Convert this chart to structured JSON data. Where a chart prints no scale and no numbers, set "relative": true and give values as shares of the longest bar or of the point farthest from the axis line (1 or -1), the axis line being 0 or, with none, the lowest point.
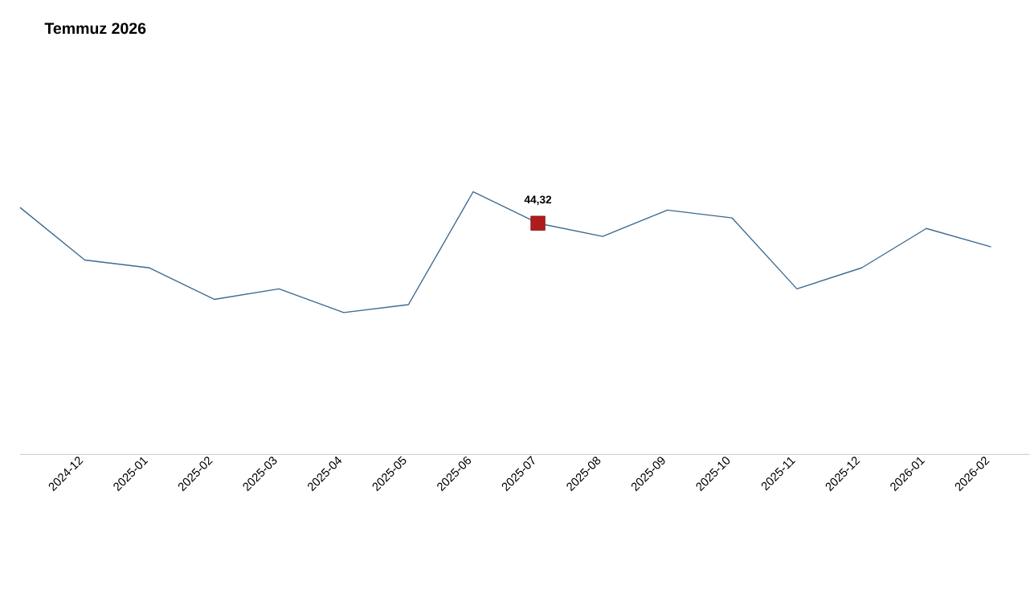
{
  "chart_data": {
    "type": "line",
    "title": "Temmuz 2026",
    "relative": true,
    "tick_labels": "x",
    "categories": [
      null,
      "2024-12",
      "2025-01",
      "2025-02",
      "2025-03",
      "2025-04",
      "2025-05",
      "2025-06",
      "2025-07",
      "2025-08",
      "2025-09",
      "2025-10",
      "2025-11",
      "2025-12",
      "2026-01",
      "2026-02"
    ],
    "series": [
      {
        "color": "#3d6a8f",
        "marker": "none",
        "values": [
          0.94,
          0.74,
          0.71,
          0.59,
          0.63,
          0.54,
          0.57,
          1,
          0.88,
          0.83,
          0.93,
          0.9,
          0.63,
          0.71,
          0.86,
          0.79
        ]
      },
      {
        "type": "scatter",
        "color": "#b01c1c",
        "marker": "square",
        "values": [
          null,
          null,
          null,
          null,
          null,
          null,
          null,
          null,
          0.88,
          null,
          null,
          null,
          null,
          null,
          null,
          null
        ]
      }
    ],
    "annotations": [
      {
        "text": "44,32",
        "x": "2025-07",
        "y": 0.88
      }
    ]
  }
}
